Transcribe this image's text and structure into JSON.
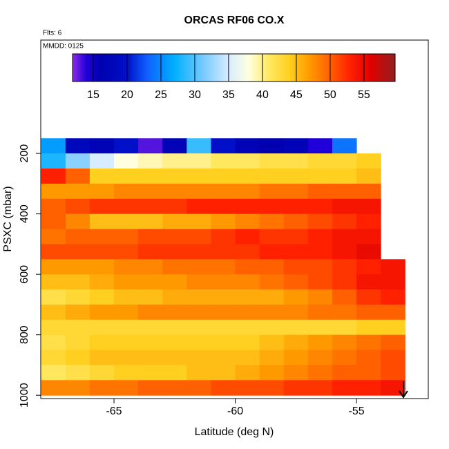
{
  "chart_data": {
    "type": "heatmap",
    "title": "ORCAS RF06 CO.X",
    "annotations": [
      "Flts: 6",
      "MMDD: 0125"
    ],
    "x_label": "Latitude (deg N)",
    "y_label": "PSXC (mbar)",
    "x": [
      -67.5,
      -66.5,
      -65.5,
      -64.5,
      -63.5,
      -62.5,
      -61.5,
      -60.5,
      -59.5,
      -58.5,
      -57.5,
      -56.5,
      -55.5,
      -54.5,
      -53.5
    ],
    "y": [
      175,
      225,
      275,
      325,
      375,
      425,
      475,
      525,
      575,
      625,
      675,
      725,
      775,
      825,
      875,
      925,
      975
    ],
    "z": [
      [
        26,
        18,
        17,
        20,
        13,
        17,
        29,
        20,
        17,
        16,
        17,
        14,
        24,
        null,
        null
      ],
      [
        28,
        32,
        35,
        38,
        39,
        40,
        40,
        41,
        41,
        42,
        42,
        43,
        43,
        44,
        null
      ],
      [
        53,
        50,
        44,
        44,
        44,
        44,
        44,
        44,
        44,
        44,
        44,
        44,
        44,
        45,
        null
      ],
      [
        47,
        47,
        47,
        48,
        48,
        48,
        48,
        48,
        48,
        49,
        49,
        50,
        50,
        50,
        null
      ],
      [
        50,
        51,
        52,
        52,
        52,
        52,
        53,
        53,
        53,
        53,
        53,
        53,
        54,
        54,
        null
      ],
      [
        50,
        48,
        45,
        45,
        45,
        46,
        46,
        47,
        48,
        49,
        50,
        51,
        52,
        53,
        null
      ],
      [
        49,
        50,
        50,
        50,
        51,
        51,
        51,
        52,
        53,
        52,
        52,
        53,
        54,
        54,
        null
      ],
      [
        51,
        51,
        51,
        51,
        52,
        52,
        52,
        52,
        52,
        53,
        53,
        53,
        54,
        55,
        null
      ],
      [
        47,
        47,
        47,
        48,
        48,
        49,
        49,
        49,
        50,
        50,
        51,
        51,
        52,
        53,
        54
      ],
      [
        45,
        45,
        46,
        47,
        47,
        47,
        48,
        48,
        48,
        49,
        50,
        51,
        52,
        54,
        54
      ],
      [
        42,
        43,
        44,
        45,
        45,
        46,
        46,
        46,
        46,
        46,
        47,
        48,
        50,
        52,
        53
      ],
      [
        45,
        46,
        47,
        47,
        48,
        48,
        48,
        48,
        48,
        48,
        48,
        49,
        49,
        50,
        50
      ],
      [
        43,
        43,
        43,
        43,
        43,
        43,
        43,
        43,
        43,
        43,
        43,
        43,
        43,
        44,
        44
      ],
      [
        42,
        43,
        44,
        44,
        44,
        44,
        44,
        44,
        44,
        45,
        46,
        47,
        48,
        49,
        50
      ],
      [
        43,
        44,
        45,
        45,
        45,
        45,
        45,
        45,
        45,
        46,
        47,
        48,
        49,
        50,
        51
      ],
      [
        41,
        42,
        43,
        44,
        44,
        44,
        45,
        45,
        46,
        47,
        48,
        49,
        50,
        50,
        51
      ],
      [
        48,
        48,
        49,
        49,
        50,
        50,
        50,
        51,
        51,
        51,
        52,
        52,
        53,
        53,
        54
      ]
    ],
    "xlim": [
      -68.02,
      -52.04
    ],
    "ylim": [
      1011,
      -175
    ],
    "xticks": [
      -65,
      -60,
      -55
    ],
    "yticks": [
      200,
      400,
      600,
      800,
      1000
    ],
    "colorbar": {
      "lim": [
        11.94,
        59.6
      ],
      "ticks": [
        15,
        20,
        25,
        30,
        35,
        40,
        45,
        50,
        55
      ],
      "stops": [
        [
          11.94,
          "#8a2be2"
        ],
        [
          14,
          "#2000d8"
        ],
        [
          16,
          "#0000b0"
        ],
        [
          20,
          "#0010c8"
        ],
        [
          23,
          "#1060ff"
        ],
        [
          27,
          "#00b0ff"
        ],
        [
          31,
          "#70c8ff"
        ],
        [
          35,
          "#d8ecff"
        ],
        [
          38,
          "#ffffe0"
        ],
        [
          41,
          "#ffe860"
        ],
        [
          44,
          "#ffd020"
        ],
        [
          47,
          "#ff9900"
        ],
        [
          50,
          "#ff6000"
        ],
        [
          53,
          "#ff2000"
        ],
        [
          56,
          "#e00000"
        ],
        [
          59.6,
          "#902020"
        ]
      ]
    }
  }
}
